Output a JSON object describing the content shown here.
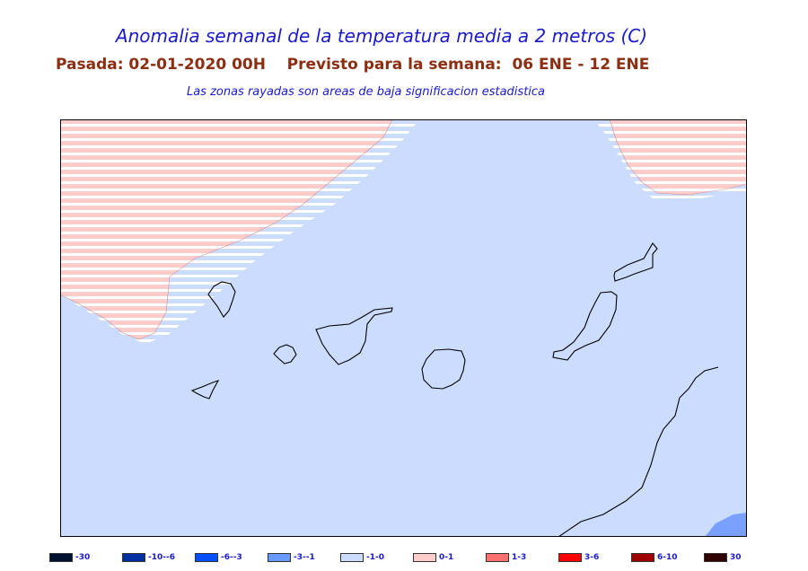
{
  "title": "Anomalia semanal de la temperatura media a 2 metros (C)",
  "subtitle": "Pasada: 02-01-2020 00H    Previsto para la semana:  06 ENE - 12 ENE",
  "note": "Las zonas rayadas son areas de baja significacion estadistica",
  "colors": {
    "light_blue": "#ccdcff",
    "light_pink": "#ffcccc",
    "mid_blue": "#7aa0ff",
    "hatch": "#ffffff"
  },
  "legend": [
    {
      "label": "-30",
      "color": "#001030"
    },
    {
      "label": "-10--6",
      "color": "#0030a0"
    },
    {
      "label": "-6--3",
      "color": "#0050ff"
    },
    {
      "label": "-3--1",
      "color": "#6a9aff"
    },
    {
      "label": "-1-0",
      "color": "#ccdcff"
    },
    {
      "label": "0-1",
      "color": "#ffcccc"
    },
    {
      "label": "1-3",
      "color": "#ff7070"
    },
    {
      "label": "3-6",
      "color": "#ff0000"
    },
    {
      "label": "6-10",
      "color": "#a00000"
    },
    {
      "label": "30",
      "color": "#300000"
    }
  ]
}
